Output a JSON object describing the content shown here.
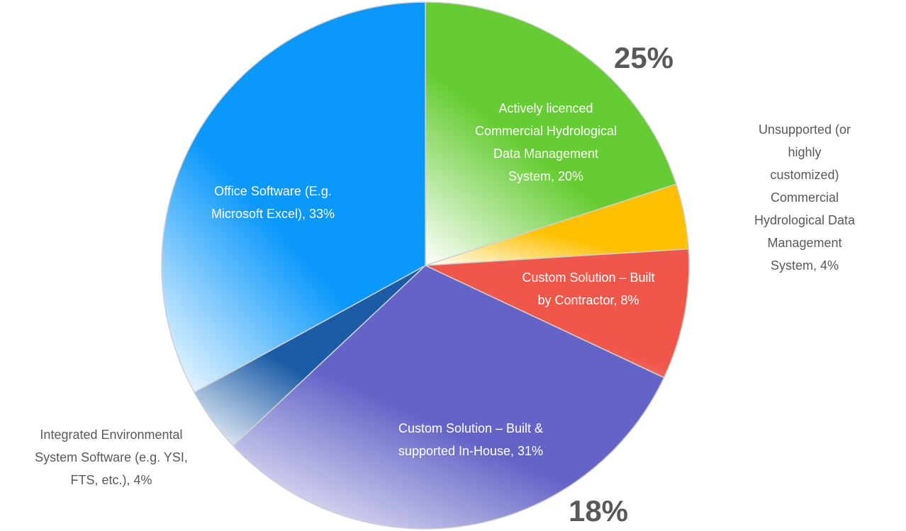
{
  "chart_data": {
    "type": "pie",
    "categories": [
      "Actively licenced\nCommercial Hydrological\nData Management\nSystem, 20%",
      "Unsupported (or highly\ncustomized) Commercial\nHydrological Data\nManagement System, 4%",
      "Custom Solution – Built\nby Contractor, 8%",
      "Custom Solution – Built &\nsupported In-House, 31%",
      "Integrated Environmental\nSystem Software (e.g. YSI,\nFTS, etc.), 4%",
      "Office Software (E.g.\nMicrosoft Excel), 33%"
    ],
    "values": [
      20,
      4,
      8,
      31,
      4,
      33
    ],
    "colors": [
      "#66cc33",
      "#ffc000",
      "#f0574a",
      "#6464c8",
      "#1c5ca6",
      "#0b98fb"
    ],
    "annotations": [
      "25%",
      "18%"
    ]
  }
}
